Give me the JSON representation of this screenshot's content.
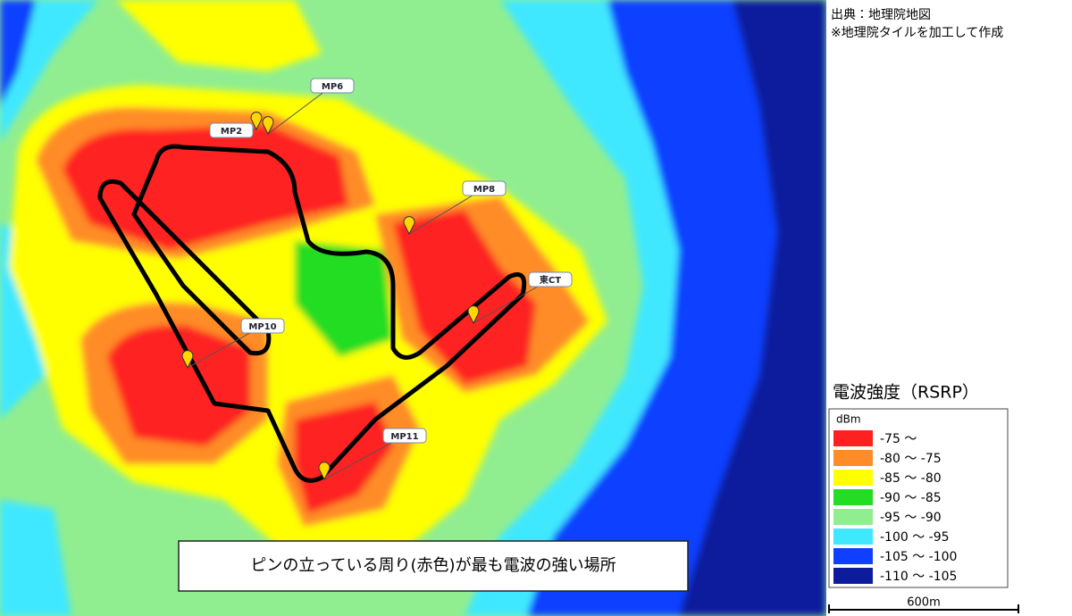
{
  "source": [
    "出典：地理院地図",
    "※地理院タイルを加工して作成"
  ],
  "pins": [
    {
      "label": "MP6"
    },
    {
      "label": "MP2"
    },
    {
      "label": "MP8"
    },
    {
      "label": "東CT"
    },
    {
      "label": "MP10"
    },
    {
      "label": "MP11"
    }
  ],
  "legend": {
    "title": "電波強度（RSRP）",
    "unit": "dBm",
    "items": [
      {
        "label": "-75 〜",
        "color": "#ff2020"
      },
      {
        "label": "-80 〜 -75",
        "color": "#ff8c28"
      },
      {
        "label": "-85 〜 -80",
        "color": "#ffff00"
      },
      {
        "label": "-90 〜 -85",
        "color": "#22dd22"
      },
      {
        "label": "-95 〜 -90",
        "color": "#90ee90"
      },
      {
        "label": "-100 〜 -95",
        "color": "#40e8ff"
      },
      {
        "label": "-105 〜 -100",
        "color": "#1040ff"
      },
      {
        "label": "-110 〜 -105",
        "color": "#0c1c9c"
      }
    ]
  },
  "scale": "600m",
  "caption": "ピンの立っている周り(赤色)が最も電波の強い場所"
}
